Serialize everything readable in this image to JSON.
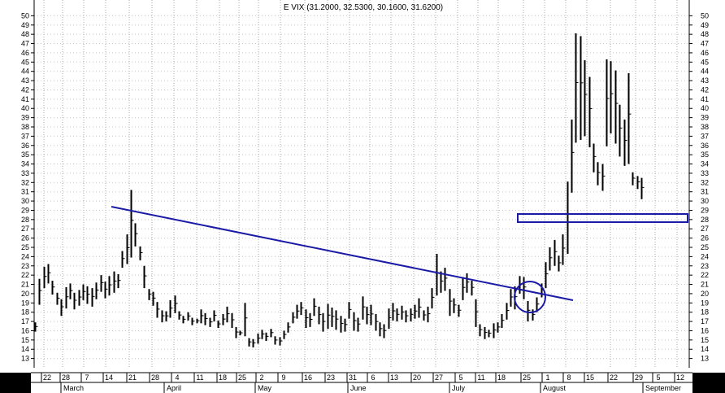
{
  "chart_data": {
    "type": "ohlc",
    "title": "E VIX (31.2000, 32.5300, 30.1600, 31.6200)",
    "ylim": [
      12,
      51
    ],
    "y_ticks": [
      13,
      14,
      15,
      16,
      17,
      18,
      19,
      20,
      21,
      22,
      23,
      24,
      25,
      26,
      27,
      28,
      29,
      30,
      31,
      32,
      33,
      34,
      35,
      36,
      37,
      38,
      39,
      40,
      41,
      42,
      43,
      44,
      45,
      46,
      47,
      48,
      49,
      50
    ],
    "x_day_ticks": [
      "22",
      "28",
      "7",
      "14",
      "21",
      "28",
      "4",
      "11",
      "18",
      "25",
      "2",
      "9",
      "16",
      "23",
      "31",
      "6",
      "13",
      "20",
      "27",
      "5",
      "11",
      "18",
      "25",
      "1",
      "8",
      "15",
      "22",
      "29",
      "5",
      "12"
    ],
    "x_months": [
      "March",
      "April",
      "May",
      "June",
      "July",
      "August",
      "September"
    ],
    "grid": true,
    "bars": [
      [
        16.9,
        15.9
      ],
      [
        21.6,
        18.8
      ],
      [
        22.9,
        20.6
      ],
      [
        23.2,
        21.1
      ],
      [
        21.4,
        19.9
      ],
      [
        20.1,
        18.8
      ],
      [
        19.4,
        17.6
      ],
      [
        20.7,
        18.4
      ],
      [
        21.1,
        19.4
      ],
      [
        20.1,
        18.3
      ],
      [
        20.4,
        18.7
      ],
      [
        21.0,
        19.3
      ],
      [
        20.8,
        18.9
      ],
      [
        20.6,
        18.6
      ],
      [
        21.2,
        19.4
      ],
      [
        22.0,
        20.2
      ],
      [
        21.3,
        19.5
      ],
      [
        21.9,
        19.8
      ],
      [
        22.4,
        20.1
      ],
      [
        22.1,
        20.6
      ],
      [
        24.6,
        22.8
      ],
      [
        26.4,
        23.2
      ],
      [
        31.2,
        23.9
      ],
      [
        27.6,
        25.1
      ],
      [
        25.1,
        23.6
      ],
      [
        23.0,
        20.6
      ],
      [
        20.5,
        19.3
      ],
      [
        20.2,
        18.7
      ],
      [
        19.1,
        17.4
      ],
      [
        18.2,
        16.9
      ],
      [
        18.1,
        17.0
      ],
      [
        19.3,
        17.4
      ],
      [
        19.8,
        17.9
      ],
      [
        18.1,
        17.2
      ],
      [
        17.6,
        16.8
      ],
      [
        18.0,
        17.1
      ],
      [
        17.4,
        16.6
      ],
      [
        17.3,
        16.8
      ],
      [
        18.3,
        16.8
      ],
      [
        17.9,
        16.6
      ],
      [
        17.4,
        16.4
      ],
      [
        18.2,
        17.0
      ],
      [
        17.1,
        16.3
      ],
      [
        17.8,
        16.6
      ],
      [
        18.6,
        16.9
      ],
      [
        17.9,
        16.3
      ],
      [
        16.4,
        15.2
      ],
      [
        16.0,
        15.5
      ],
      [
        19.0,
        15.4
      ],
      [
        15.2,
        14.3
      ],
      [
        15.1,
        14.2
      ],
      [
        15.7,
        14.6
      ],
      [
        16.1,
        15.1
      ],
      [
        15.8,
        14.9
      ],
      [
        16.2,
        15.3
      ],
      [
        15.4,
        14.5
      ],
      [
        15.3,
        14.4
      ],
      [
        16.0,
        15.1
      ],
      [
        16.9,
        15.8
      ],
      [
        18.0,
        16.8
      ],
      [
        18.8,
        17.3
      ],
      [
        19.1,
        17.7
      ],
      [
        18.3,
        16.3
      ],
      [
        17.9,
        16.4
      ],
      [
        19.5,
        17.6
      ],
      [
        18.6,
        16.7
      ],
      [
        17.9,
        15.9
      ],
      [
        18.9,
        16.2
      ],
      [
        18.5,
        16.4
      ],
      [
        18.2,
        16.1
      ],
      [
        17.6,
        15.8
      ],
      [
        17.3,
        15.9
      ],
      [
        19.1,
        17.3
      ],
      [
        18.0,
        16.0
      ],
      [
        17.4,
        15.9
      ],
      [
        19.7,
        17.2
      ],
      [
        18.6,
        16.7
      ],
      [
        18.8,
        16.6
      ],
      [
        17.8,
        16.0
      ],
      [
        16.9,
        15.4
      ],
      [
        16.7,
        15.2
      ],
      [
        18.4,
        16.2
      ],
      [
        19.0,
        17.1
      ],
      [
        18.4,
        17.0
      ],
      [
        18.7,
        17.2
      ],
      [
        18.2,
        16.9
      ],
      [
        18.4,
        17.0
      ],
      [
        18.8,
        17.3
      ],
      [
        19.5,
        17.4
      ],
      [
        18.2,
        17.1
      ],
      [
        18.6,
        16.9
      ],
      [
        20.6,
        18.4
      ],
      [
        24.3,
        19.8
      ],
      [
        22.4,
        20.1
      ],
      [
        22.8,
        20.3
      ],
      [
        20.5,
        17.6
      ],
      [
        19.5,
        17.9
      ],
      [
        18.8,
        17.5
      ],
      [
        21.8,
        19.3
      ],
      [
        22.2,
        20.1
      ],
      [
        21.4,
        19.8
      ],
      [
        19.4,
        16.4
      ],
      [
        16.7,
        15.4
      ],
      [
        16.4,
        15.1
      ],
      [
        16.1,
        15.3
      ],
      [
        16.8,
        15.2
      ],
      [
        16.9,
        15.8
      ],
      [
        17.8,
        16.3
      ],
      [
        19.0,
        17.2
      ],
      [
        20.5,
        18.6
      ],
      [
        20.8,
        18.3
      ],
      [
        21.9,
        20.0
      ],
      [
        21.8,
        19.4
      ],
      [
        19.2,
        17.0
      ],
      [
        18.3,
        17.1
      ],
      [
        19.6,
        18.0
      ],
      [
        21.1,
        19.6
      ],
      [
        23.4,
        20.6
      ],
      [
        25.0,
        22.5
      ],
      [
        25.8,
        23.0
      ],
      [
        24.1,
        22.4
      ],
      [
        26.4,
        23.1
      ],
      [
        32.1,
        24.3
      ],
      [
        38.8,
        30.9
      ],
      [
        48.1,
        36.3
      ],
      [
        47.8,
        36.6
      ],
      [
        45.2,
        37.0
      ],
      [
        43.4,
        35.8
      ],
      [
        36.2,
        33.1
      ],
      [
        34.2,
        31.7
      ],
      [
        34.0,
        31.1
      ],
      [
        45.3,
        35.9
      ],
      [
        45.1,
        37.3
      ],
      [
        44.1,
        36.2
      ],
      [
        40.4,
        34.8
      ],
      [
        38.8,
        33.8
      ],
      [
        43.8,
        34.0
      ],
      [
        33.1,
        31.7
      ],
      [
        32.7,
        31.3
      ],
      [
        32.5,
        30.2
      ]
    ]
  }
}
